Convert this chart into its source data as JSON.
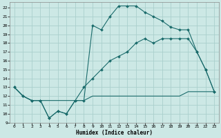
{
  "title": "",
  "xlabel": "Humidex (Indice chaleur)",
  "background_color": "#cce8e5",
  "grid_color": "#aacfcc",
  "line_color": "#1a6b6b",
  "xlim": [
    -0.5,
    23.5
  ],
  "ylim": [
    9,
    22.6
  ],
  "yticks": [
    9,
    10,
    11,
    12,
    13,
    14,
    15,
    16,
    17,
    18,
    19,
    20,
    21,
    22
  ],
  "xticks": [
    0,
    1,
    2,
    3,
    4,
    5,
    6,
    7,
    8,
    9,
    10,
    11,
    12,
    13,
    14,
    15,
    16,
    17,
    18,
    19,
    20,
    21,
    22,
    23
  ],
  "line1_x": [
    0,
    1,
    2,
    3,
    4,
    5,
    6,
    7,
    8,
    9,
    10,
    11,
    12,
    13,
    14,
    15,
    16,
    17,
    18,
    19,
    20,
    21,
    22,
    23
  ],
  "line1_y": [
    13,
    12,
    11.5,
    11.5,
    9.5,
    10.3,
    10,
    11.5,
    11.5,
    20,
    19.5,
    21,
    22.2,
    22.2,
    22.2,
    21.5,
    21,
    20.5,
    19.8,
    19.5,
    19.5,
    17,
    15,
    12.5
  ],
  "line2_x": [
    0,
    1,
    2,
    3,
    4,
    5,
    6,
    7,
    8,
    9,
    10,
    11,
    12,
    13,
    14,
    15,
    16,
    17,
    18,
    19,
    20,
    21,
    22,
    23
  ],
  "line2_y": [
    13,
    12,
    11.5,
    11.5,
    9.5,
    10.3,
    10,
    11.5,
    13,
    14,
    15,
    16,
    16.5,
    17,
    18,
    18.5,
    18,
    18.5,
    18.5,
    18.5,
    18.5,
    17,
    15,
    12.5
  ],
  "line3_x": [
    0,
    1,
    2,
    3,
    4,
    5,
    6,
    7,
    8,
    9,
    10,
    11,
    12,
    13,
    14,
    15,
    16,
    17,
    18,
    19,
    20,
    21,
    22,
    23
  ],
  "line3_y": [
    13,
    12,
    11.5,
    11.5,
    11.5,
    11.5,
    11.5,
    11.5,
    11.5,
    12,
    12,
    12,
    12,
    12,
    12,
    12,
    12,
    12,
    12,
    12,
    12.5,
    12.5,
    12.5,
    12.5
  ]
}
